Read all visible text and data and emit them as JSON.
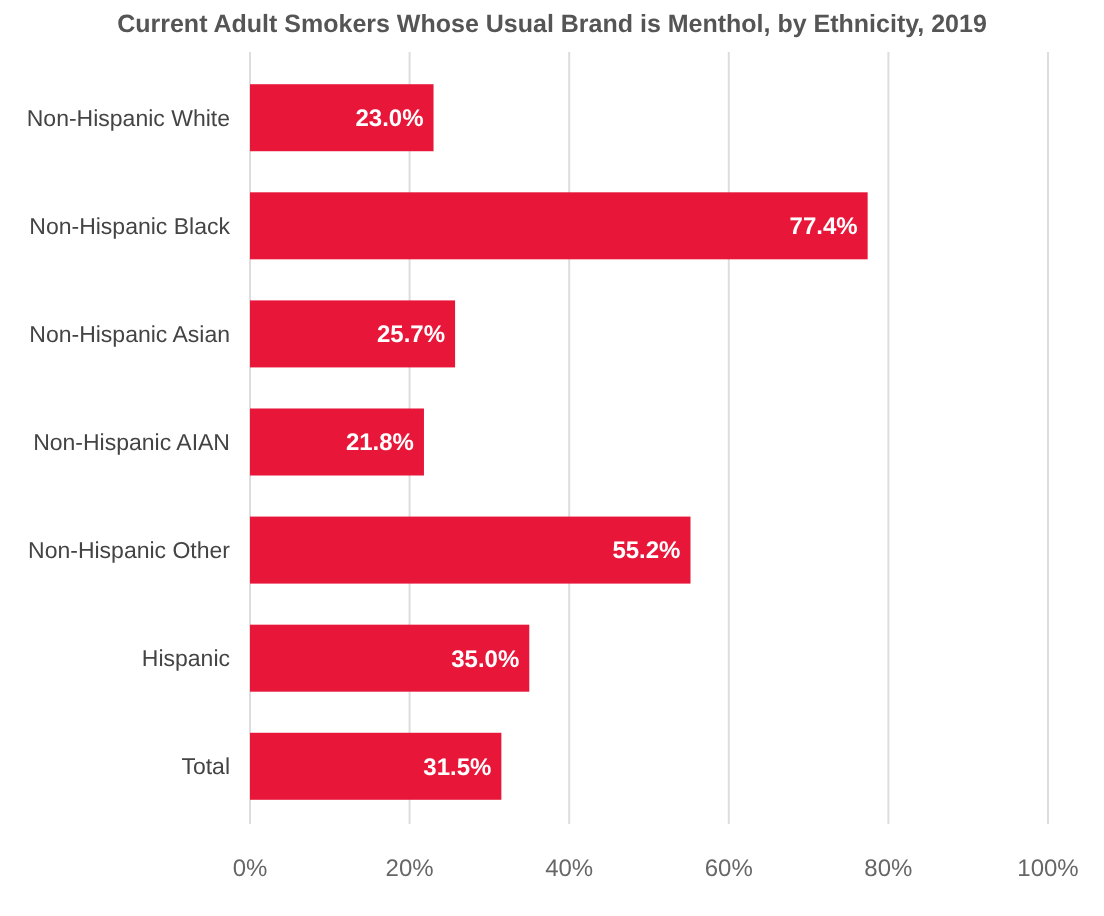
{
  "chart_data": {
    "type": "bar",
    "orientation": "horizontal",
    "title": "Current Adult Smokers Whose Usual Brand is Menthol, by Ethnicity, 2019",
    "categories": [
      "Non-Hispanic White",
      "Non-Hispanic Black",
      "Non-Hispanic Asian",
      "Non-Hispanic AIAN",
      "Non-Hispanic Other",
      "Hispanic",
      "Total"
    ],
    "values": [
      23.0,
      77.4,
      25.7,
      21.8,
      55.2,
      35.0,
      31.5
    ],
    "value_labels": [
      "23.0%",
      "77.4%",
      "25.7%",
      "21.8%",
      "55.2%",
      "35.0%",
      "31.5%"
    ],
    "color": "#e8173a",
    "xlim": [
      0,
      100
    ],
    "xticks": [
      {
        "value": 0,
        "label": "0%"
      },
      {
        "value": 20,
        "label": "20%"
      },
      {
        "value": 40,
        "label": "40%"
      },
      {
        "value": 60,
        "label": "60%"
      },
      {
        "value": 80,
        "label": "80%"
      },
      {
        "value": 100,
        "label": "100%"
      }
    ],
    "grid": "x"
  }
}
